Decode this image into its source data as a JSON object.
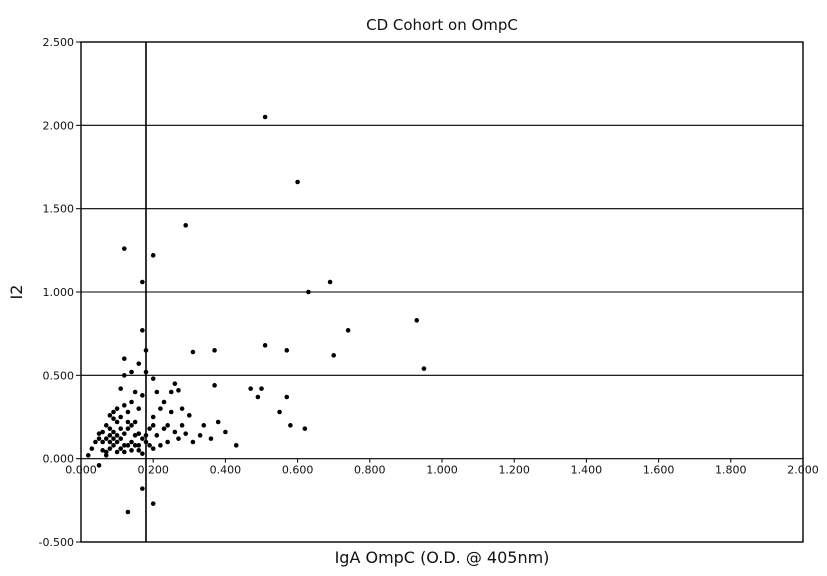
{
  "chart_data": {
    "type": "scatter",
    "title": "CD Cohort on OmpC",
    "xlabel": "IgA OmpC (O.D. @ 405nm)",
    "ylabel": "I2",
    "xlim": [
      0,
      2.0
    ],
    "ylim": [
      -0.5,
      2.5
    ],
    "x_ticks": [
      0,
      0.2,
      0.4,
      0.6,
      0.8,
      1.0,
      1.2,
      1.4,
      1.6,
      1.8,
      2.0
    ],
    "x_tick_labels": [
      "0.000",
      "0.200",
      "0.400",
      "0.600",
      "0.800",
      "1.000",
      "1.200",
      "1.400",
      "1.600",
      "1.800",
      "2.000"
    ],
    "y_ticks": [
      -0.5,
      0,
      0.5,
      1.0,
      1.5,
      2.0,
      2.5
    ],
    "y_tick_labels": [
      "-0.500",
      "0.000",
      "0.500",
      "1.000",
      "1.500",
      "2.000",
      "2.500"
    ],
    "grid": {
      "horizontal_at": [
        0,
        0.5,
        1.0,
        1.5,
        2.0
      ],
      "vertical": false
    },
    "cutoff_line_x": 0.18,
    "legend": "none",
    "colors": {
      "points": "#000000",
      "lines": "#000000",
      "background": "#ffffff"
    },
    "points": [
      [
        0.51,
        2.05
      ],
      [
        0.6,
        1.66
      ],
      [
        0.29,
        1.4
      ],
      [
        0.12,
        1.26
      ],
      [
        0.2,
        1.22
      ],
      [
        0.69,
        1.06
      ],
      [
        0.17,
        1.06
      ],
      [
        0.63,
        1.0
      ],
      [
        0.93,
        0.83
      ],
      [
        0.74,
        0.77
      ],
      [
        0.17,
        0.77
      ],
      [
        0.51,
        0.68
      ],
      [
        0.18,
        0.65
      ],
      [
        0.31,
        0.64
      ],
      [
        0.37,
        0.65
      ],
      [
        0.57,
        0.65
      ],
      [
        0.7,
        0.62
      ],
      [
        0.12,
        0.6
      ],
      [
        0.16,
        0.57
      ],
      [
        0.95,
        0.54
      ],
      [
        0.14,
        0.52
      ],
      [
        0.18,
        0.52
      ],
      [
        0.12,
        0.5
      ],
      [
        0.2,
        0.48
      ],
      [
        0.26,
        0.45
      ],
      [
        0.37,
        0.44
      ],
      [
        0.47,
        0.42
      ],
      [
        0.5,
        0.42
      ],
      [
        0.25,
        0.4
      ],
      [
        0.27,
        0.41
      ],
      [
        0.49,
        0.37
      ],
      [
        0.57,
        0.37
      ],
      [
        0.11,
        0.42
      ],
      [
        0.15,
        0.4
      ],
      [
        0.17,
        0.38
      ],
      [
        0.55,
        0.28
      ],
      [
        0.58,
        0.2
      ],
      [
        0.62,
        0.18
      ],
      [
        0.43,
        0.08
      ],
      [
        0.38,
        0.22
      ],
      [
        0.3,
        0.26
      ],
      [
        0.34,
        0.2
      ],
      [
        0.33,
        0.14
      ],
      [
        0.29,
        0.15
      ],
      [
        0.27,
        0.12
      ],
      [
        0.24,
        0.1
      ],
      [
        0.22,
        0.08
      ],
      [
        0.21,
        0.14
      ],
      [
        0.19,
        0.18
      ],
      [
        0.2,
        0.25
      ],
      [
        0.22,
        0.3
      ],
      [
        0.23,
        0.34
      ],
      [
        0.25,
        0.28
      ],
      [
        0.28,
        0.3
      ],
      [
        0.31,
        0.1
      ],
      [
        0.36,
        0.12
      ],
      [
        0.4,
        0.16
      ],
      [
        0.16,
        0.3
      ],
      [
        0.14,
        0.34
      ],
      [
        0.13,
        0.28
      ],
      [
        0.12,
        0.32
      ],
      [
        0.11,
        0.25
      ],
      [
        0.1,
        0.22
      ],
      [
        0.09,
        0.24
      ],
      [
        0.08,
        0.18
      ],
      [
        0.07,
        0.2
      ],
      [
        0.06,
        0.16
      ],
      [
        0.05,
        0.12
      ],
      [
        0.04,
        0.1
      ],
      [
        0.03,
        0.06
      ],
      [
        0.02,
        0.02
      ],
      [
        0.06,
        0.05
      ],
      [
        0.05,
        -0.04
      ],
      [
        0.07,
        0.12
      ],
      [
        0.08,
        0.14
      ],
      [
        0.09,
        0.16
      ],
      [
        0.1,
        0.1
      ],
      [
        0.11,
        0.12
      ],
      [
        0.12,
        0.15
      ],
      [
        0.13,
        0.18
      ],
      [
        0.14,
        0.2
      ],
      [
        0.15,
        0.22
      ],
      [
        0.16,
        0.15
      ],
      [
        0.17,
        0.12
      ],
      [
        0.18,
        0.1
      ],
      [
        0.19,
        0.08
      ],
      [
        0.2,
        0.06
      ],
      [
        0.09,
        0.08
      ],
      [
        0.08,
        0.06
      ],
      [
        0.1,
        0.04
      ],
      [
        0.11,
        0.06
      ],
      [
        0.12,
        0.04
      ],
      [
        0.13,
        0.08
      ],
      [
        0.14,
        0.1
      ],
      [
        0.15,
        0.08
      ],
      [
        0.16,
        0.05
      ],
      [
        0.17,
        0.03
      ],
      [
        0.07,
        0.04
      ],
      [
        0.06,
        0.1
      ],
      [
        0.05,
        0.15
      ],
      [
        0.1,
        0.3
      ],
      [
        0.09,
        0.28
      ],
      [
        0.08,
        0.26
      ],
      [
        0.07,
        0.02
      ],
      [
        0.21,
        0.4
      ],
      [
        0.23,
        0.18
      ],
      [
        0.24,
        0.2
      ],
      [
        0.26,
        0.16
      ],
      [
        0.28,
        0.2
      ],
      [
        0.15,
        0.14
      ],
      [
        0.13,
        0.22
      ],
      [
        0.11,
        0.18
      ],
      [
        0.1,
        0.14
      ],
      [
        0.09,
        0.12
      ],
      [
        0.08,
        0.1
      ],
      [
        0.12,
        0.08
      ],
      [
        0.14,
        0.05
      ],
      [
        0.16,
        0.08
      ],
      [
        0.18,
        0.14
      ],
      [
        0.2,
        0.2
      ],
      [
        0.13,
        -0.32
      ],
      [
        0.2,
        -0.27
      ],
      [
        0.17,
        -0.18
      ]
    ]
  }
}
